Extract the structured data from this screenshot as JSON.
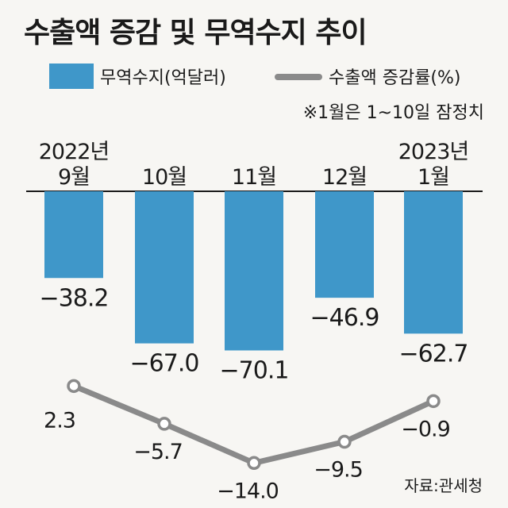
{
  "title": "수출액 증감 및 무역수지 추이",
  "note": "※1월은 1~10일 잠정치",
  "source": "자료:관세청",
  "colors": {
    "bar": "#3f97c9",
    "line": "#8a8a8a",
    "marker_fill": "#ffffff"
  },
  "chart_data": {
    "type": "bar",
    "categories": [
      "2022년 9월",
      "10월",
      "11월",
      "12월",
      "2023년 1월"
    ],
    "category_lines": [
      [
        "2022년",
        "9월"
      ],
      [
        "10월"
      ],
      [
        "11월"
      ],
      [
        "12월"
      ],
      [
        "2023년",
        "1월"
      ]
    ],
    "series": [
      {
        "name": "무역수지(억달러)",
        "type": "bar",
        "values": [
          -38.2,
          -67.0,
          -70.1,
          -46.9,
          -62.7
        ],
        "labels": [
          "−38.2",
          "−67.0",
          "−70.1",
          "−46.9",
          "−62.7"
        ]
      },
      {
        "name": "수출액 증감률(%)",
        "type": "line",
        "values": [
          2.3,
          -5.7,
          -14.0,
          -9.5,
          -0.9
        ],
        "labels": [
          "2.3",
          "−5.7",
          "−14.0",
          "−9.5",
          "−0.9"
        ]
      }
    ],
    "legend_position": "top",
    "grid": false
  }
}
